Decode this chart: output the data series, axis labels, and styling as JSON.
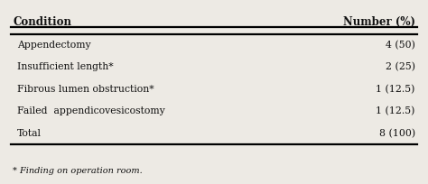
{
  "col1_header": "Condition",
  "col2_header": "Number (%)",
  "rows": [
    [
      "Appendectomy",
      "4 (50)"
    ],
    [
      "Insufficient length*",
      "2 (25)"
    ],
    [
      "Fibrous lumen obstruction*",
      "1 (12.5)"
    ],
    [
      "Failed  appendicovesicostomy",
      "1 (12.5)"
    ],
    [
      "Total",
      "8 (100)"
    ]
  ],
  "footnote": "* Finding on operation room.",
  "bg_color": "#edeae4",
  "text_color": "#111111",
  "header_fontsize": 8.5,
  "body_fontsize": 7.8,
  "footnote_fontsize": 7.0,
  "fig_width": 4.74,
  "fig_height": 2.04,
  "dpi": 100
}
